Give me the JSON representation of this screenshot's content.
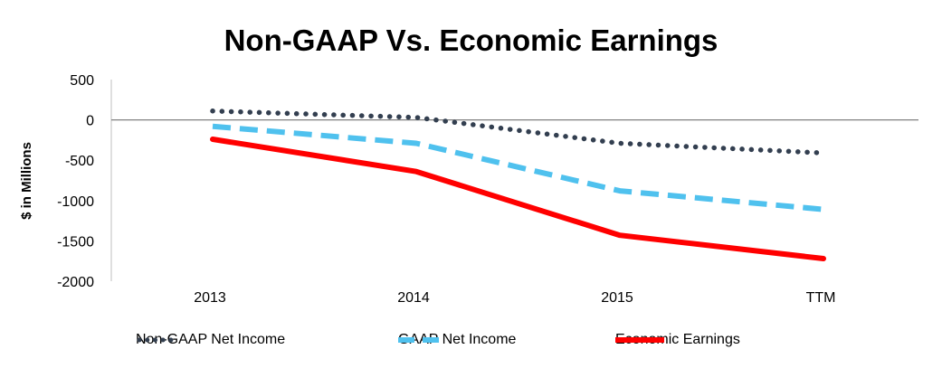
{
  "chart_data": {
    "type": "line",
    "title": "Non-GAAP Vs. Economic Earnings",
    "xlabel": "",
    "ylabel": "$ in Millions",
    "categories": [
      "2013",
      "2014",
      "2015",
      "TTM"
    ],
    "ylim": [
      -2000,
      500
    ],
    "yticks": [
      "500",
      "0",
      "-500",
      "-1000",
      "-1500",
      "-2000"
    ],
    "grid": false,
    "legend_position": "bottom",
    "series": [
      {
        "name": "Non-GAAP Net Income",
        "values": [
          110,
          30,
          -290,
          -410
        ],
        "color": "#333f50",
        "style": "dotted"
      },
      {
        "name": "GAAP Net Income",
        "values": [
          -80,
          -290,
          -880,
          -1110
        ],
        "color": "#4fc1ee",
        "style": "dashed"
      },
      {
        "name": "Economic Earnings",
        "values": [
          -240,
          -640,
          -1430,
          -1720
        ],
        "color": "#ff0000",
        "style": "solid"
      }
    ]
  }
}
